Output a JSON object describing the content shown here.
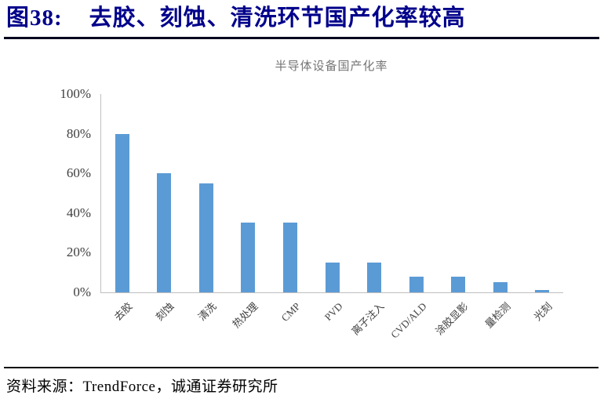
{
  "figure": {
    "label": "图38:",
    "title": "去胶、刻蚀、清洗环节国产化率较高"
  },
  "source": {
    "text": "资料来源：TrendForce，诚通证券研究所"
  },
  "colors": {
    "heading": "#00008B",
    "heading_rule": "#05051e",
    "bar": "#5B9BD5",
    "axis_line": "#BFBFBF",
    "chart_title": "#757575",
    "tick_label": "#3f3f3f",
    "footer_rule": "#0a0a0a"
  },
  "chart_data": {
    "type": "bar",
    "title": "半导体设备国产化率",
    "categories": [
      "去胶",
      "刻蚀",
      "清洗",
      "热处理",
      "CMP",
      "PVD",
      "离子注入",
      "CVD/ALD",
      "涂胶显影",
      "量检测",
      "光刻"
    ],
    "values": [
      80,
      60,
      55,
      35,
      35,
      15,
      15,
      8,
      8,
      5,
      1
    ],
    "unit": "%",
    "ylim": [
      0,
      100
    ],
    "ytick_labels": [
      "0%",
      "20%",
      "40%",
      "60%",
      "80%",
      "100%"
    ],
    "grid": false,
    "legend": "none",
    "bar_color": "#5B9BD5",
    "x_label_rotation_deg": -45
  }
}
